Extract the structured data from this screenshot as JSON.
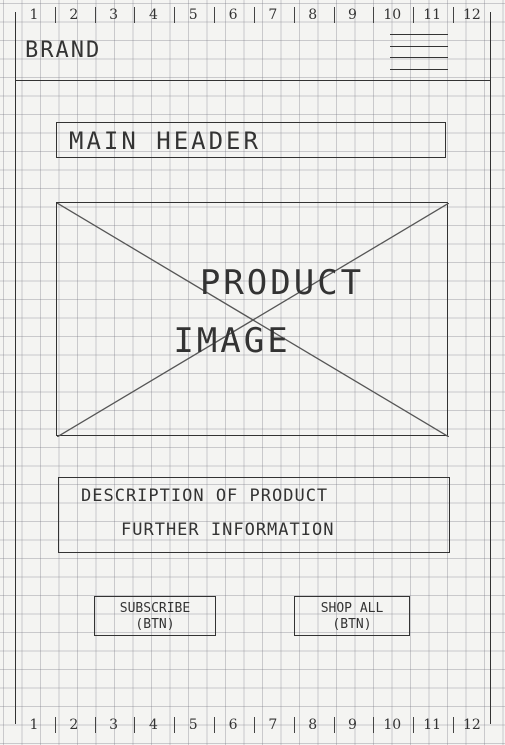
{
  "ruler": {
    "top": [
      "1",
      "2",
      "3",
      "4",
      "5",
      "6",
      "7",
      "8",
      "9",
      "10",
      "11",
      "12"
    ],
    "bottom": [
      "1",
      "2",
      "3",
      "4",
      "5",
      "6",
      "7",
      "8",
      "9",
      "10",
      "11",
      "12"
    ]
  },
  "navbar": {
    "brand": "BRAND",
    "menu_icon": "hamburger-icon"
  },
  "main_header": "MAIN HEADER",
  "product_image": {
    "line1": "PRODUCT",
    "line2": "IMAGE"
  },
  "description": {
    "line1": "DESCRIPTION OF PRODUCT",
    "line2": "FURTHER INFORMATION"
  },
  "buttons": {
    "subscribe": {
      "line1": "SUBSCRIBE",
      "line2": "(BTN)"
    },
    "shop_all": {
      "line1": "SHOP ALL",
      "line2": "(BTN)"
    }
  }
}
